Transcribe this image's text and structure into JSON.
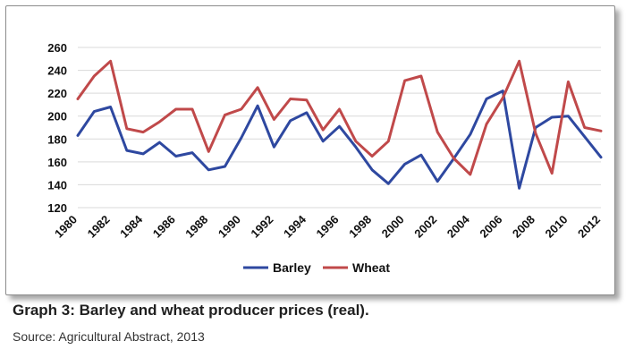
{
  "caption": "Graph 3: Barley and wheat producer prices (real).",
  "source": "Source: Agricultural Abstract, 2013",
  "colors": {
    "barley": "#2e48a0",
    "wheat": "#c0494a",
    "grid": "#d9d9d9"
  },
  "chart_data": {
    "type": "line",
    "title": "",
    "xlabel": "",
    "ylabel": "",
    "ylim": [
      120,
      260
    ],
    "y_ticks": [
      120,
      140,
      160,
      180,
      200,
      220,
      240,
      260
    ],
    "x": [
      1980,
      1981,
      1982,
      1983,
      1984,
      1985,
      1986,
      1987,
      1988,
      1989,
      1990,
      1991,
      1992,
      1993,
      1994,
      1995,
      1996,
      1997,
      1998,
      1999,
      2000,
      2001,
      2002,
      2003,
      2004,
      2005,
      2006,
      2007,
      2008,
      2009,
      2010,
      2011,
      2012
    ],
    "x_tick_labels": [
      "1980",
      "1982",
      "1984",
      "1986",
      "1988",
      "1990",
      "1992",
      "1994",
      "1996",
      "1998",
      "2000",
      "2002",
      "2004",
      "2006",
      "2008",
      "2010",
      "2012"
    ],
    "grid": "horizontal",
    "legend_position": "bottom",
    "series": [
      {
        "name": "Barley",
        "values": [
          183,
          204,
          208,
          170,
          167,
          177,
          165,
          168,
          153,
          156,
          181,
          209,
          173,
          196,
          203,
          178,
          191,
          173,
          153,
          141,
          158,
          166,
          143,
          163,
          184,
          215,
          222,
          137,
          190,
          199,
          200,
          182,
          164
        ]
      },
      {
        "name": "Wheat",
        "values": [
          215,
          235,
          248,
          189,
          186,
          195,
          206,
          206,
          169,
          201,
          206,
          225,
          197,
          215,
          214,
          188,
          206,
          178,
          165,
          178,
          231,
          235,
          186,
          163,
          149,
          193,
          216,
          248,
          185,
          150,
          230,
          190,
          187
        ]
      }
    ]
  }
}
